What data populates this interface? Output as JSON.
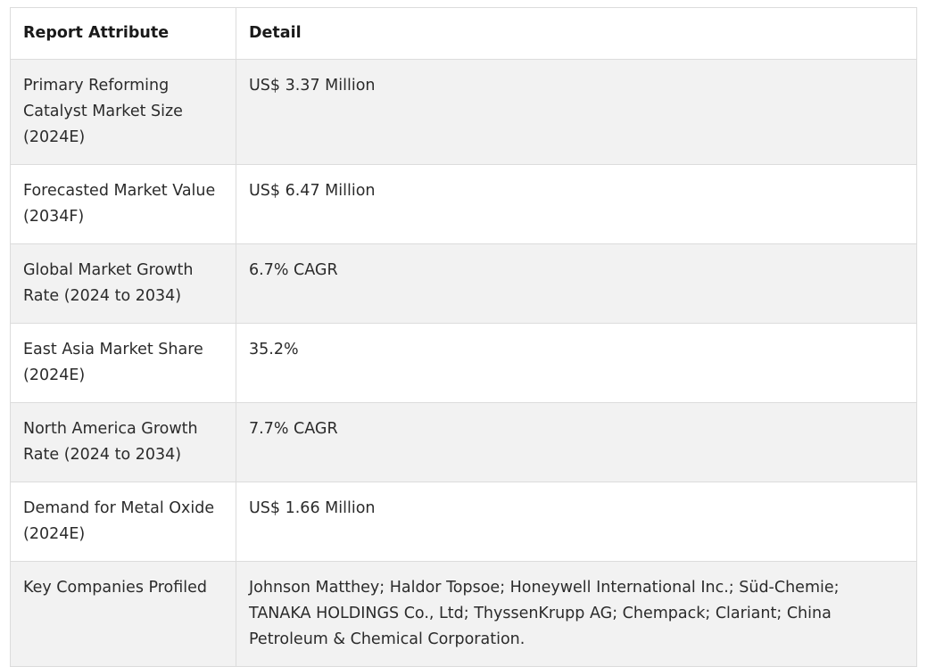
{
  "table": {
    "headers": {
      "attribute": "Report Attribute",
      "detail": "Detail"
    },
    "rows": [
      {
        "attribute": "Primary Reforming Catalyst Market Size (2024E)",
        "detail": "US$ 3.37 Million"
      },
      {
        "attribute": "Forecasted Market Value (2034F)",
        "detail": "US$ 6.47 Million"
      },
      {
        "attribute": "Global Market Growth Rate (2024 to 2034)",
        "detail": "6.7% CAGR"
      },
      {
        "attribute": "East Asia Market Share (2024E)",
        "detail": "35.2%"
      },
      {
        "attribute": "North America Growth Rate (2024 to 2034)",
        "detail": "7.7% CAGR"
      },
      {
        "attribute": "Demand for Metal Oxide (2024E)",
        "detail": "US$ 1.66 Million"
      },
      {
        "attribute": "Key Companies Profiled",
        "detail": "Johnson Matthey; Haldor Topsoe; Honeywell International Inc.; Süd-Chemie; TANAKA HOLDINGS Co., Ltd; ThyssenKrupp AG; Chempack; Clariant; China Petroleum & Chemical Corporation."
      }
    ]
  }
}
